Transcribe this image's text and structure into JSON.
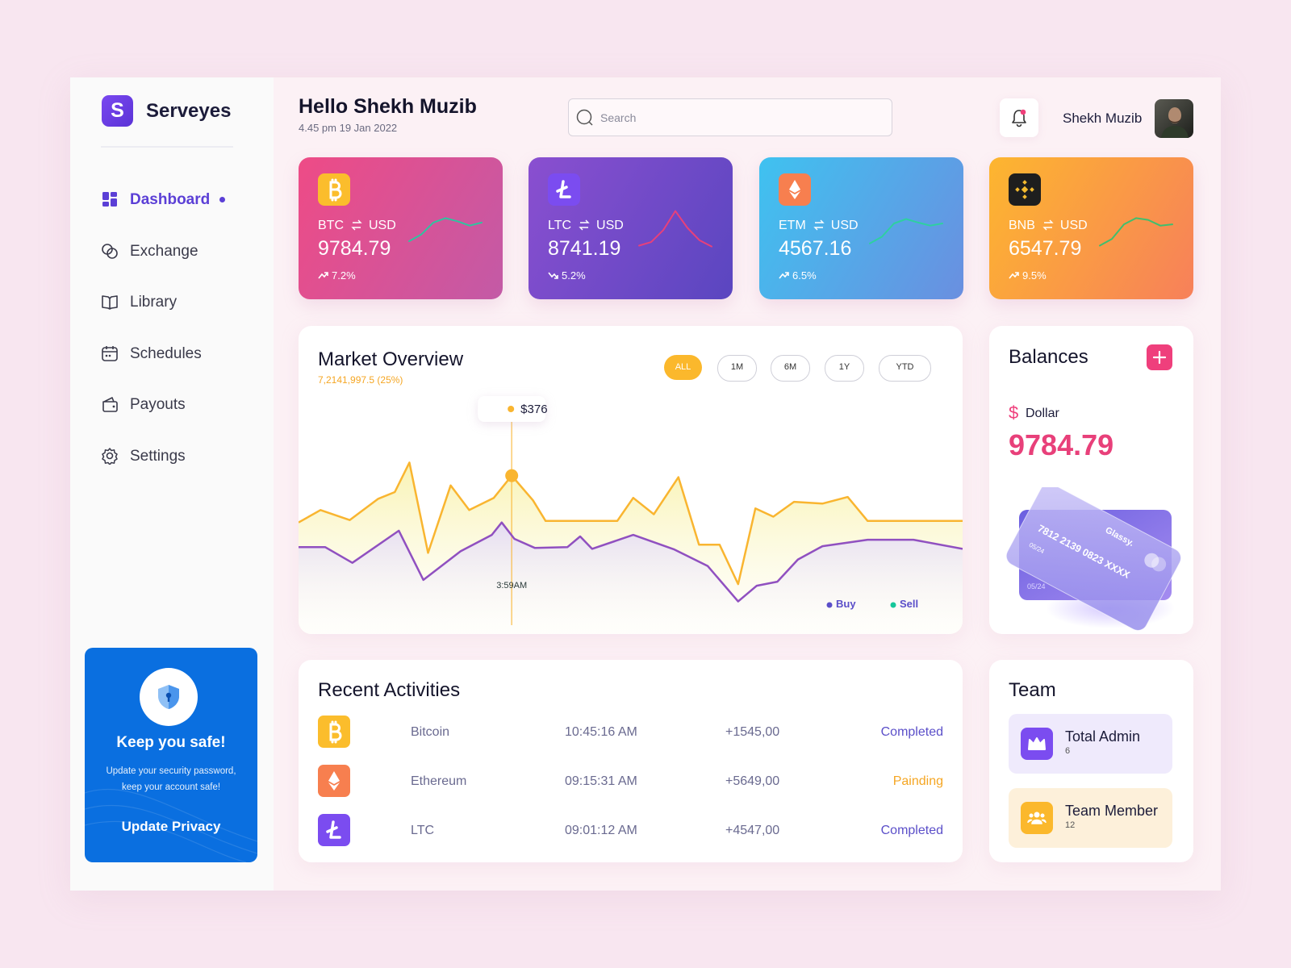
{
  "brand": {
    "logo": "S",
    "name": "Serveyes"
  },
  "nav": [
    {
      "label": "Dashboard",
      "active": true
    },
    {
      "label": "Exchange",
      "active": false
    },
    {
      "label": "Library",
      "active": false
    },
    {
      "label": "Schedules",
      "active": false
    },
    {
      "label": "Payouts",
      "active": false
    },
    {
      "label": "Settings",
      "active": false
    }
  ],
  "promo": {
    "title": "Keep you safe!",
    "text_lines": [
      "Update your security password,",
      "keep your account safe!"
    ],
    "button": "Update Privacy"
  },
  "header": {
    "greeting": "Hello Shekh Muzib",
    "datetime": "4.45 pm 19 Jan 2022",
    "search_placeholder": "Search",
    "user": "Shekh Muzib"
  },
  "tickers": [
    {
      "coin": "BTC",
      "quote": "USD",
      "price": "9784.79",
      "change": "7.2%",
      "trend": "up",
      "gradient": [
        "#ee4b86",
        "#c35aa6"
      ],
      "icon_bg": "#fbbd2c",
      "sparkline": [
        20,
        35,
        62,
        72,
        65,
        55,
        62
      ],
      "spark_color": "#2ec4a0"
    },
    {
      "coin": "LTC",
      "quote": "USD",
      "price": "8741.19",
      "change": "5.2%",
      "trend": "down",
      "gradient": [
        "#8a4fd0",
        "#5a46c0"
      ],
      "icon_bg": "#7b4cf0",
      "sparkline": [
        10,
        18,
        45,
        88,
        50,
        22,
        8
      ],
      "spark_color": "#e8407a"
    },
    {
      "coin": "ETM",
      "quote": "USD",
      "price": "4567.16",
      "change": "6.5%",
      "trend": "up",
      "gradient": [
        "#3fc2f0",
        "#6a8fe0"
      ],
      "icon_bg": "#f77f4f",
      "sparkline": [
        15,
        30,
        60,
        70,
        62,
        55,
        60
      ],
      "spark_color": "#2ed0a0"
    },
    {
      "coin": "BNB",
      "quote": "USD",
      "price": "6547.79",
      "change": "9.5%",
      "trend": "up",
      "gradient": [
        "#fdb62f",
        "#f7805a"
      ],
      "icon_bg": "#1e1e1e",
      "sparkline": [
        10,
        25,
        58,
        72,
        68,
        55,
        58
      ],
      "spark_color": "#3fbf6e"
    }
  ],
  "market": {
    "title": "Market Overview",
    "subtitle": "7,2141,997.5 (25%)",
    "ranges": [
      {
        "label": "ALL",
        "active": true
      },
      {
        "label": "1M",
        "active": false
      },
      {
        "label": "6M",
        "active": false
      },
      {
        "label": "1Y",
        "active": false
      },
      {
        "label": "YTD",
        "active": false
      }
    ],
    "chart": {
      "type": "line",
      "xlim": [
        0,
        100
      ],
      "ylim": [
        0,
        100
      ],
      "highlight_series": 0,
      "highlight_index": 10,
      "tooltip": "$376",
      "time_label": "3:59AM",
      "series": [
        {
          "name": "Sell",
          "color": "#f9b530",
          "legend_color": "#16c79a",
          "x": [
            0,
            3.3,
            7.7,
            12.0,
            14.5,
            16.7,
            19.5,
            22.9,
            25.7,
            29.4,
            32.1,
            35.3,
            37.2,
            48.0,
            50.4,
            53.5,
            57.2,
            60.3,
            63.4,
            66.2,
            68.8,
            71.5,
            74.6,
            78.9,
            82.7,
            85.7,
            100
          ],
          "values": [
            46.3,
            51.9,
            47.4,
            57.0,
            60.0,
            73.3,
            32.6,
            63.0,
            51.9,
            57.4,
            67.4,
            56.3,
            47.0,
            47.0,
            57.4,
            50.0,
            66.7,
            36.3,
            36.3,
            18.5,
            52.6,
            48.9,
            55.6,
            54.8,
            57.8,
            47.0,
            47.0
          ]
        },
        {
          "name": "Buy",
          "color": "#9050c0",
          "legend_color": "#5b4fc9",
          "x": [
            0,
            4.0,
            8.1,
            15.1,
            18.8,
            24.4,
            29.1,
            30.6,
            32.5,
            35.6,
            40.5,
            42.4,
            44.2,
            50.4,
            56.6,
            61.6,
            66.2,
            69.0,
            72.1,
            75.2,
            78.9,
            85.7,
            92.6,
            100
          ],
          "values": [
            35.2,
            35.2,
            28.1,
            42.6,
            20.4,
            33.3,
            40.7,
            46.3,
            38.9,
            34.8,
            35.2,
            40.0,
            34.4,
            40.7,
            34.1,
            26.7,
            10.7,
            17.8,
            19.6,
            29.6,
            35.6,
            38.5,
            38.5,
            34.4
          ]
        }
      ]
    }
  },
  "balances": {
    "title": "Balances",
    "symbol": "$",
    "currency": "Dollar",
    "amount": "9784.79",
    "card": {
      "brand": "Glassy.",
      "number": "7812 2139 0823 XXXX",
      "expiry": "05/24"
    }
  },
  "activities": {
    "title": "Recent Activities",
    "rows": [
      {
        "name": "Bitcoin",
        "time": "10:45:16 AM",
        "amount": "+1545,00",
        "status": "Completed",
        "status_color": "#5b4fc9"
      },
      {
        "name": "Ethereum",
        "time": "09:15:31 AM",
        "amount": "+5649,00",
        "status": "Painding",
        "status_color": "#f5a623"
      },
      {
        "name": "LTC",
        "time": "09:01:12 AM",
        "amount": "+4547,00",
        "status": "Completed",
        "status_color": "#5b4fc9"
      }
    ]
  },
  "team": {
    "title": "Team",
    "items": [
      {
        "label": "Total Admin",
        "count": 6,
        "bg": "#efeafc",
        "icon_bg": "#7b4cf0"
      },
      {
        "label": "Team Member",
        "count": 12,
        "bg": "#fdf0da",
        "icon_bg": "#fbb82c"
      }
    ]
  }
}
